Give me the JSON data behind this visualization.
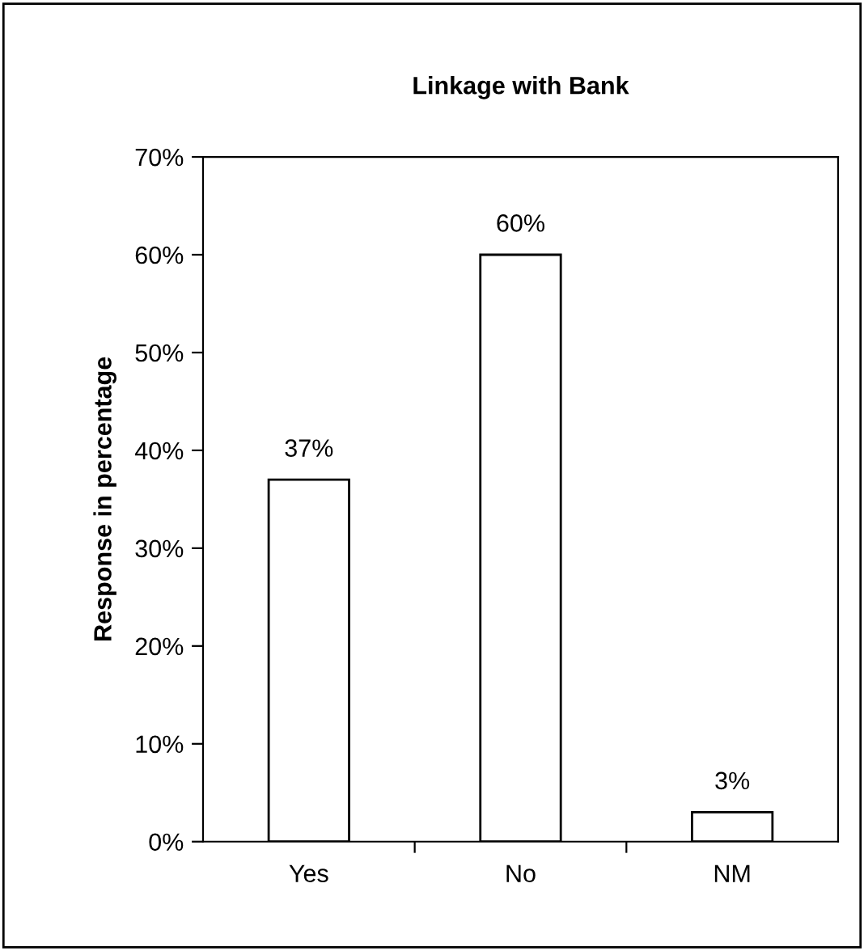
{
  "chart_data": {
    "type": "bar",
    "title": "Linkage with Bank",
    "ylabel": "Response in percentage",
    "categories": [
      "Yes",
      "No",
      "NM"
    ],
    "values": [
      37,
      60,
      3
    ],
    "value_labels": [
      "37%",
      "60%",
      "3%"
    ],
    "color": "#ffffff",
    "ylim": [
      0,
      70
    ],
    "yticks": [
      {
        "value": 0,
        "label": "0%"
      },
      {
        "value": 10,
        "label": "10%"
      },
      {
        "value": 20,
        "label": "20%"
      },
      {
        "value": 30,
        "label": "30%"
      },
      {
        "value": 40,
        "label": "40%"
      },
      {
        "value": 50,
        "label": "50%"
      },
      {
        "value": 60,
        "label": "60%"
      },
      {
        "value": 70,
        "label": "70%"
      }
    ],
    "grid": false,
    "legend": false
  }
}
